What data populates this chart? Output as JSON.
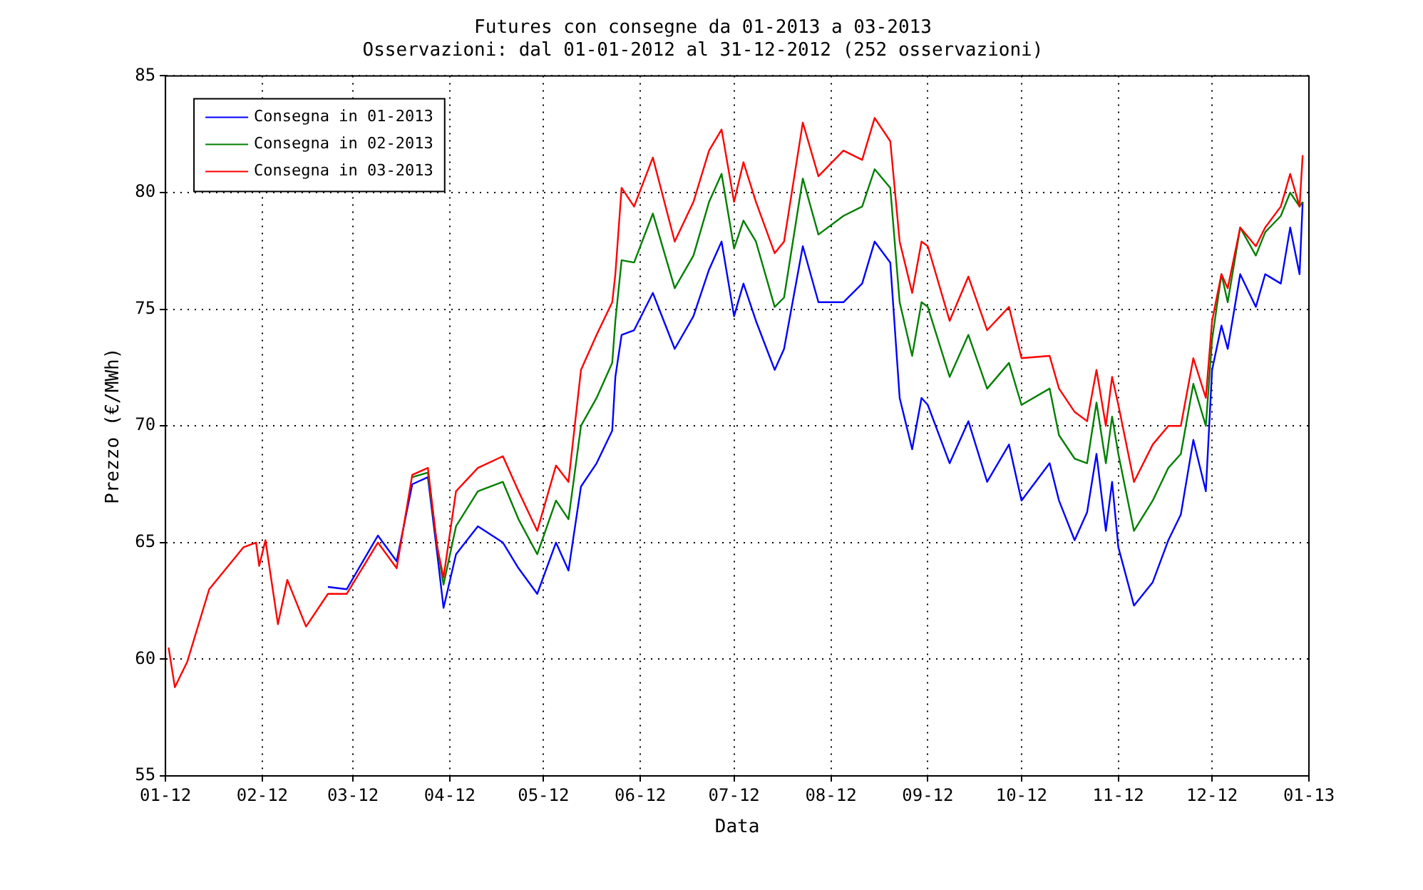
{
  "chart_data": {
    "type": "line",
    "title": "Futures con consegne da 01-2013 a 03-2013",
    "subtitle": "Osservazioni: dal 01-01-2012 al 31-12-2012 (252 osservazioni)",
    "xlabel": "Data",
    "ylabel": "Prezzo (€/MWh)",
    "x": [
      "2012-01-02",
      "2012-01-04",
      "2012-01-08",
      "2012-01-15",
      "2012-01-26",
      "2012-01-30",
      "2012-01-31",
      "2012-02-02",
      "2012-02-06",
      "2012-02-09",
      "2012-02-15",
      "2012-02-22",
      "2012-02-28",
      "2012-03-09",
      "2012-03-15",
      "2012-03-20",
      "2012-03-25",
      "2012-03-28",
      "2012-03-30",
      "2012-04-03",
      "2012-04-10",
      "2012-04-18",
      "2012-04-23",
      "2012-04-29",
      "2012-05-05",
      "2012-05-09",
      "2012-05-13",
      "2012-05-18",
      "2012-05-23",
      "2012-05-24",
      "2012-05-26",
      "2012-05-30",
      "2012-06-05",
      "2012-06-12",
      "2012-06-18",
      "2012-06-23",
      "2012-06-27",
      "2012-07-01",
      "2012-07-04",
      "2012-07-08",
      "2012-07-14",
      "2012-07-17",
      "2012-07-23",
      "2012-07-28",
      "2012-08-05",
      "2012-08-11",
      "2012-08-15",
      "2012-08-20",
      "2012-08-23",
      "2012-08-27",
      "2012-08-30",
      "2012-09-01",
      "2012-09-08",
      "2012-09-14",
      "2012-09-20",
      "2012-09-27",
      "2012-10-01",
      "2012-10-10",
      "2012-10-13",
      "2012-10-18",
      "2012-10-22",
      "2012-10-25",
      "2012-10-28",
      "2012-10-30",
      "2012-11-01",
      "2012-11-06",
      "2012-11-12",
      "2012-11-17",
      "2012-11-21",
      "2012-11-25",
      "2012-11-29",
      "2012-12-01",
      "2012-12-04",
      "2012-12-06",
      "2012-12-10",
      "2012-12-15",
      "2012-12-18",
      "2012-12-23",
      "2012-12-26",
      "2012-12-29",
      "2012-12-30"
    ],
    "series": [
      {
        "name": "Consegna in 01-2013",
        "color": "#0000ff",
        "values": [
          null,
          null,
          null,
          null,
          null,
          null,
          null,
          null,
          null,
          null,
          null,
          63.1,
          63.0,
          65.3,
          64.2,
          67.5,
          67.8,
          64.5,
          62.2,
          64.5,
          65.7,
          65.0,
          63.9,
          62.8,
          65.0,
          63.8,
          67.4,
          68.4,
          69.8,
          72.1,
          73.9,
          74.1,
          75.7,
          73.3,
          74.7,
          76.7,
          77.9,
          74.7,
          76.1,
          74.5,
          72.4,
          73.3,
          77.7,
          75.3,
          75.3,
          76.1,
          77.9,
          77.0,
          71.2,
          69.0,
          71.2,
          70.9,
          68.4,
          70.2,
          67.6,
          69.2,
          66.8,
          68.4,
          66.8,
          65.1,
          66.3,
          68.8,
          65.5,
          67.6,
          64.8,
          62.3,
          63.3,
          65.1,
          66.2,
          69.4,
          67.2,
          72.4,
          74.3,
          73.3,
          76.5,
          75.1,
          76.5,
          76.1,
          78.5,
          76.5,
          79.6
        ]
      },
      {
        "name": "Consegna in 02-2013",
        "color": "#008000",
        "values": [
          null,
          null,
          null,
          null,
          null,
          null,
          null,
          null,
          null,
          null,
          null,
          null,
          null,
          null,
          null,
          67.8,
          68.0,
          64.8,
          63.2,
          65.7,
          67.2,
          67.6,
          66.0,
          64.5,
          66.8,
          66.0,
          70.0,
          71.2,
          72.7,
          74.5,
          77.1,
          77.0,
          79.1,
          75.9,
          77.3,
          79.6,
          80.8,
          77.6,
          78.8,
          77.9,
          75.1,
          75.5,
          80.6,
          78.2,
          79.0,
          79.4,
          81.0,
          80.2,
          75.3,
          73.0,
          75.3,
          75.1,
          72.1,
          73.9,
          71.6,
          72.7,
          70.9,
          71.6,
          69.6,
          68.6,
          68.4,
          71.0,
          68.4,
          70.4,
          68.8,
          65.5,
          66.8,
          68.2,
          68.8,
          71.8,
          70.0,
          73.7,
          76.5,
          75.3,
          78.5,
          77.3,
          78.3,
          79.0,
          80.0,
          79.4,
          79.6
        ]
      },
      {
        "name": "Consegna in 03-2013",
        "color": "#ff0000",
        "values": [
          60.5,
          58.8,
          59.9,
          63.0,
          64.8,
          65.0,
          64.0,
          65.1,
          61.5,
          63.4,
          61.4,
          62.8,
          62.8,
          65.0,
          63.9,
          67.9,
          68.2,
          64.8,
          63.5,
          67.2,
          68.2,
          68.7,
          67.2,
          65.5,
          68.3,
          67.6,
          72.4,
          73.9,
          75.3,
          76.5,
          80.2,
          79.4,
          81.5,
          77.9,
          79.6,
          81.8,
          82.7,
          79.6,
          81.3,
          79.6,
          77.4,
          77.9,
          83.0,
          80.7,
          81.8,
          81.4,
          83.2,
          82.2,
          77.9,
          75.7,
          77.9,
          77.7,
          74.5,
          76.4,
          74.1,
          75.1,
          72.9,
          73.0,
          71.6,
          70.6,
          70.2,
          72.4,
          70.0,
          72.1,
          70.9,
          67.6,
          69.2,
          70.0,
          70.0,
          72.9,
          71.2,
          74.5,
          76.5,
          75.9,
          78.5,
          77.7,
          78.5,
          79.4,
          80.8,
          79.4,
          81.6
        ]
      }
    ],
    "xlim": [
      "2012-01-01",
      "2013-01-01"
    ],
    "xticks": [
      {
        "value": "2012-01-01",
        "label": "01-12"
      },
      {
        "value": "2012-02-01",
        "label": "02-12"
      },
      {
        "value": "2012-03-01",
        "label": "03-12"
      },
      {
        "value": "2012-04-01",
        "label": "04-12"
      },
      {
        "value": "2012-05-01",
        "label": "05-12"
      },
      {
        "value": "2012-06-01",
        "label": "06-12"
      },
      {
        "value": "2012-07-01",
        "label": "07-12"
      },
      {
        "value": "2012-08-01",
        "label": "08-12"
      },
      {
        "value": "2012-09-01",
        "label": "09-12"
      },
      {
        "value": "2012-10-01",
        "label": "10-12"
      },
      {
        "value": "2012-11-01",
        "label": "11-12"
      },
      {
        "value": "2012-12-01",
        "label": "12-12"
      },
      {
        "value": "2013-01-01",
        "label": "01-13"
      }
    ],
    "ylim": [
      55,
      85
    ],
    "yticks": [
      55,
      60,
      65,
      70,
      75,
      80,
      85
    ],
    "grid": true,
    "legend": "top left",
    "marker": "none",
    "line_style": "solid"
  }
}
